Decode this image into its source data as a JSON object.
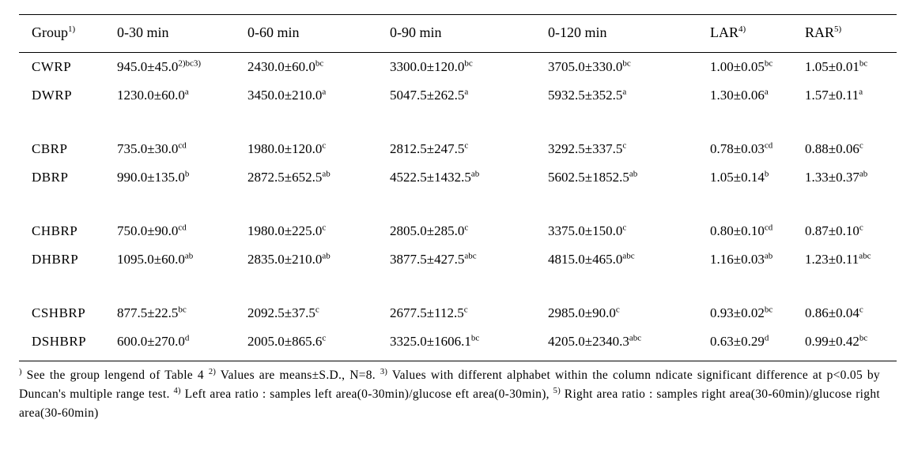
{
  "headers": {
    "group": {
      "label": "Group",
      "sup": "1)"
    },
    "c30": {
      "label": "0-30 min"
    },
    "c60": {
      "label": "0-60 min"
    },
    "c90": {
      "label": "0-90 min"
    },
    "c120": {
      "label": "0-120 min"
    },
    "lar": {
      "label": "LAR",
      "sup": "4)"
    },
    "rar": {
      "label": "RAR",
      "sup": "5)"
    }
  },
  "rows": [
    {
      "group": "CWRP",
      "c30": {
        "val": "945.0±45.0",
        "sup": "2)bc3)"
      },
      "c60": {
        "val": "2430.0±60.0",
        "sup": "bc"
      },
      "c90": {
        "val": "3300.0±120.0",
        "sup": "bc"
      },
      "c120": {
        "val": "3705.0±330.0",
        "sup": "bc"
      },
      "lar": {
        "val": "1.00±0.05",
        "sup": "bc"
      },
      "rar": {
        "val": "1.05±0.01",
        "sup": "bc"
      }
    },
    {
      "group": "DWRP",
      "c30": {
        "val": "1230.0±60.0",
        "sup": "a"
      },
      "c60": {
        "val": "3450.0±210.0",
        "sup": "a"
      },
      "c90": {
        "val": "5047.5±262.5",
        "sup": "a"
      },
      "c120": {
        "val": "5932.5±352.5",
        "sup": "a"
      },
      "lar": {
        "val": "1.30±0.06",
        "sup": "a"
      },
      "rar": {
        "val": "1.57±0.11",
        "sup": "a"
      }
    },
    {
      "gap": true
    },
    {
      "group": "CBRP",
      "c30": {
        "val": "735.0±30.0",
        "sup": "cd"
      },
      "c60": {
        "val": "1980.0±120.0",
        "sup": "c"
      },
      "c90": {
        "val": "2812.5±247.5",
        "sup": "c"
      },
      "c120": {
        "val": "3292.5±337.5",
        "sup": "c"
      },
      "lar": {
        "val": "0.78±0.03",
        "sup": "cd"
      },
      "rar": {
        "val": "0.88±0.06",
        "sup": "c"
      }
    },
    {
      "group": "DBRP",
      "c30": {
        "val": "990.0±135.0",
        "sup": "b"
      },
      "c60": {
        "val": "2872.5±652.5",
        "sup": "ab"
      },
      "c90": {
        "val": "4522.5±1432.5",
        "sup": "ab"
      },
      "c120": {
        "val": "5602.5±1852.5",
        "sup": "ab"
      },
      "lar": {
        "val": "1.05±0.14",
        "sup": "b"
      },
      "rar": {
        "val": "1.33±0.37",
        "sup": "ab"
      }
    },
    {
      "gap": true
    },
    {
      "group": "CHBRP",
      "c30": {
        "val": "750.0±90.0",
        "sup": "cd"
      },
      "c60": {
        "val": "1980.0±225.0",
        "sup": "c"
      },
      "c90": {
        "val": "2805.0±285.0",
        "sup": "c"
      },
      "c120": {
        "val": "3375.0±150.0",
        "sup": "c"
      },
      "lar": {
        "val": "0.80±0.10",
        "sup": "cd"
      },
      "rar": {
        "val": "0.87±0.10",
        "sup": "c"
      }
    },
    {
      "group": "DHBRP",
      "c30": {
        "val": "1095.0±60.0",
        "sup": "ab"
      },
      "c60": {
        "val": "2835.0±210.0",
        "sup": "ab"
      },
      "c90": {
        "val": "3877.5±427.5",
        "sup": "abc"
      },
      "c120": {
        "val": "4815.0±465.0",
        "sup": "abc"
      },
      "lar": {
        "val": "1.16±0.03",
        "sup": "ab"
      },
      "rar": {
        "val": "1.23±0.11",
        "sup": "abc"
      }
    },
    {
      "gap": true
    },
    {
      "group": "CSHBRP",
      "c30": {
        "val": "877.5±22.5",
        "sup": "bc"
      },
      "c60": {
        "val": "2092.5±37.5",
        "sup": "c"
      },
      "c90": {
        "val": "2677.5±112.5",
        "sup": "c"
      },
      "c120": {
        "val": "2985.0±90.0",
        "sup": "c"
      },
      "lar": {
        "val": "0.93±0.02",
        "sup": "bc"
      },
      "rar": {
        "val": "0.86±0.04",
        "sup": "c"
      }
    },
    {
      "group": "DSHBRP",
      "c30": {
        "val": "600.0±270.0",
        "sup": "d"
      },
      "c60": {
        "val": "2005.0±865.6",
        "sup": "c"
      },
      "c90": {
        "val": "3325.0±1606.1",
        "sup": "bc"
      },
      "c120": {
        "val": "4205.0±2340.3",
        "sup": "abc"
      },
      "lar": {
        "val": "0.63±0.29",
        "sup": "d"
      },
      "rar": {
        "val": "0.99±0.42",
        "sup": "bc"
      },
      "last": true
    }
  ],
  "footnotes": {
    "f1": {
      "sup": ")",
      "text": " See the group lengend of Table 4  "
    },
    "f2": {
      "sup": "2)",
      "text": " Values are means±S.D., N=8. "
    },
    "f3": {
      "sup": "3)",
      "text": " Values with different alphabet within the column ndicate significant difference at p<0.05 by Duncan's multiple range test. "
    },
    "f4": {
      "sup": "4)",
      "text": " Left area ratio : samples left area(0-30min)/glucose eft area(0-30min), "
    },
    "f5": {
      "sup": "5)",
      "text": " Right area ratio : samples right area(30-60min)/glucose right area(30-60min)"
    }
  }
}
